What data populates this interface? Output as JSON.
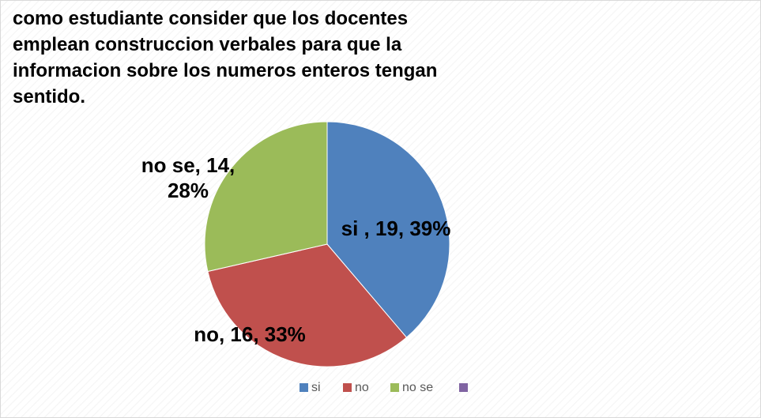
{
  "chart_data": {
    "type": "pie",
    "title": "como estudiante consider que los docentes emplean construccion verbales para que la informacion sobre los numeros enteros tengan sentido.",
    "categories": [
      "si",
      "no",
      "no se",
      null
    ],
    "values": [
      19,
      16,
      14,
      null
    ],
    "value_labels": [
      "si , 19, 39%",
      "no, 16, 33%",
      "no se, 14, 28%",
      null
    ],
    "colors": [
      "#4f81bd",
      "#c0504d",
      "#9bbb59",
      "#8064a2"
    ],
    "legend": "bottom"
  }
}
